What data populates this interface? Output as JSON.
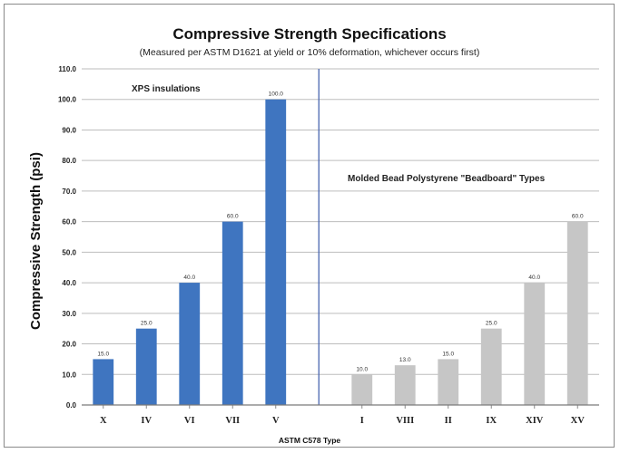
{
  "chart_data": {
    "type": "bar",
    "title": "Compressive Strength Specifications",
    "subtitle": "(Measured per ASTM D1621 at yield or 10% deformation, whichever occurs first)",
    "xlabel": "ASTM C578 Type",
    "ylabel": "Compressive Strength (psi)",
    "ylim": [
      0,
      110
    ],
    "yticks": [
      0,
      10,
      20,
      30,
      40,
      50,
      60,
      70,
      80,
      90,
      100,
      110
    ],
    "ytick_labels": [
      "0.0",
      "10.0",
      "20.0",
      "30.0",
      "40.0",
      "50.0",
      "60.0",
      "70.0",
      "80.0",
      "90.0",
      "100.0",
      "110.0"
    ],
    "grid": true,
    "groups": [
      {
        "name": "XPS insulations",
        "color": "#3f75c0",
        "categories": [
          "X",
          "IV",
          "VI",
          "VII",
          "V"
        ],
        "values": [
          15,
          25,
          40,
          60,
          100
        ],
        "data_labels": [
          "15.0",
          "25.0",
          "40.0",
          "60.0",
          "100.0"
        ]
      },
      {
        "name": "Molded Bead Polystyrene \"Beadboard\" Types",
        "color": "#c6c6c6",
        "categories": [
          "I",
          "VIII",
          "II",
          "IX",
          "XIV",
          "XV"
        ],
        "values": [
          10,
          13,
          15,
          25,
          40,
          60
        ],
        "data_labels": [
          "10.0",
          "13.0",
          "15.0",
          "25.0",
          "40.0",
          "60.0"
        ]
      }
    ],
    "divider_color": "#4a66b0",
    "gridline_color": "#bdbdbd"
  }
}
